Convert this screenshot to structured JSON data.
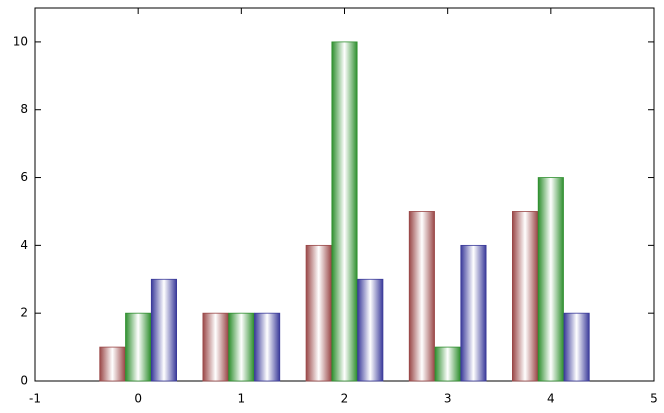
{
  "chart_data": {
    "type": "bar",
    "x": [
      0,
      1,
      2,
      3,
      4
    ],
    "series": [
      {
        "color": "#9a4848",
        "values": [
          1,
          2,
          4,
          5,
          5
        ]
      },
      {
        "color": "#2f8f2f",
        "values": [
          2,
          2,
          10,
          1,
          6
        ]
      },
      {
        "color": "#3a3a9a",
        "values": [
          3,
          2,
          3,
          4,
          2
        ]
      }
    ],
    "xlim": [
      -1,
      5
    ],
    "xticks": [
      -1,
      0,
      1,
      2,
      3,
      4,
      5
    ],
    "ylim": [
      0,
      11
    ],
    "yticks": [
      0,
      2,
      4,
      6,
      8,
      10
    ]
  }
}
